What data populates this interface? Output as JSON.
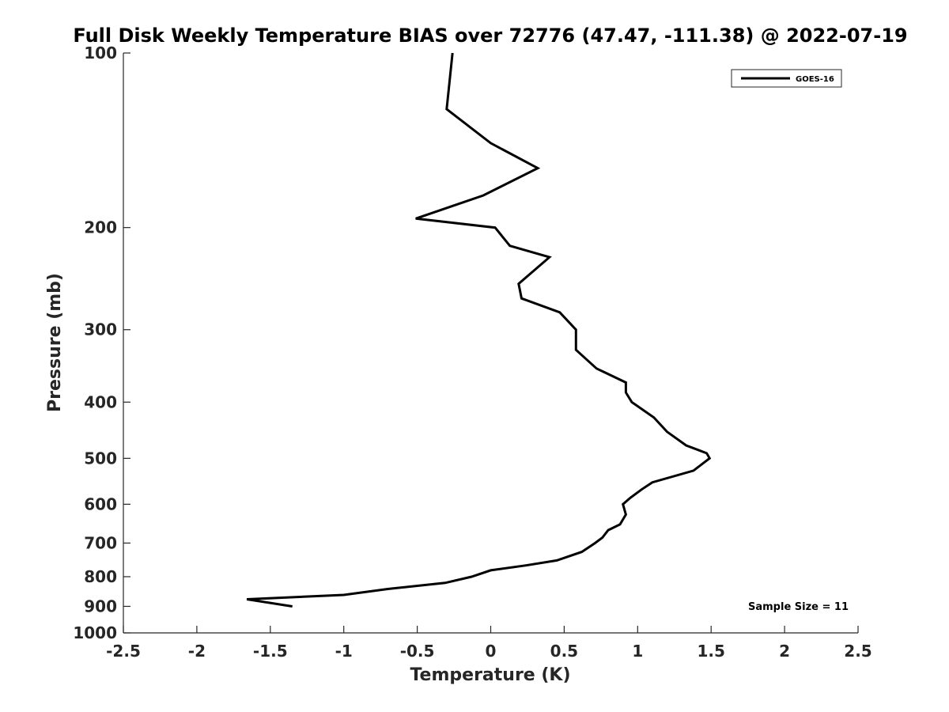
{
  "chart_data": {
    "type": "line",
    "title": "Full Disk Weekly Temperature BIAS over 72776 (47.47, -111.38) @ 2022-07-19",
    "xlabel": "Temperature (K)",
    "ylabel": "Pressure (mb)",
    "xlim": [
      -2.5,
      2.5
    ],
    "ylim": [
      100,
      1000
    ],
    "yscale": "log",
    "y_reversed": true,
    "x_ticks": [
      -2.5,
      -2,
      -1.5,
      -1,
      -0.5,
      0,
      0.5,
      1,
      1.5,
      2,
      2.5
    ],
    "x_tick_labels": [
      "-2.5",
      "-2",
      "-1.5",
      "-1",
      "-0.5",
      "0",
      "0.5",
      "1",
      "1.5",
      "2",
      "2.5"
    ],
    "y_ticks": [
      100,
      200,
      300,
      400,
      500,
      600,
      700,
      800,
      900,
      1000
    ],
    "y_tick_labels": [
      "100",
      "200",
      "300",
      "400",
      "500",
      "600",
      "700",
      "800",
      "900",
      "1000"
    ],
    "grid": false,
    "legend_position": "top-right",
    "series": [
      {
        "name": "GOES-16",
        "color": "#000000",
        "points": [
          {
            "x": -0.26,
            "y": 100
          },
          {
            "x": -0.3,
            "y": 125
          },
          {
            "x": 0.0,
            "y": 143
          },
          {
            "x": 0.32,
            "y": 158
          },
          {
            "x": -0.05,
            "y": 176
          },
          {
            "x": -0.51,
            "y": 193
          },
          {
            "x": 0.03,
            "y": 200
          },
          {
            "x": 0.13,
            "y": 215
          },
          {
            "x": 0.4,
            "y": 225
          },
          {
            "x": 0.19,
            "y": 250
          },
          {
            "x": 0.21,
            "y": 265
          },
          {
            "x": 0.47,
            "y": 280
          },
          {
            "x": 0.58,
            "y": 300
          },
          {
            "x": 0.58,
            "y": 325
          },
          {
            "x": 0.72,
            "y": 350
          },
          {
            "x": 0.92,
            "y": 370
          },
          {
            "x": 0.92,
            "y": 385
          },
          {
            "x": 0.96,
            "y": 400
          },
          {
            "x": 1.11,
            "y": 425
          },
          {
            "x": 1.2,
            "y": 450
          },
          {
            "x": 1.33,
            "y": 475
          },
          {
            "x": 1.47,
            "y": 490
          },
          {
            "x": 1.49,
            "y": 500
          },
          {
            "x": 1.38,
            "y": 525
          },
          {
            "x": 1.1,
            "y": 550
          },
          {
            "x": 1.03,
            "y": 565
          },
          {
            "x": 0.95,
            "y": 585
          },
          {
            "x": 0.9,
            "y": 600
          },
          {
            "x": 0.92,
            "y": 625
          },
          {
            "x": 0.88,
            "y": 650
          },
          {
            "x": 0.8,
            "y": 665
          },
          {
            "x": 0.76,
            "y": 685
          },
          {
            "x": 0.71,
            "y": 700
          },
          {
            "x": 0.62,
            "y": 725
          },
          {
            "x": 0.45,
            "y": 750
          },
          {
            "x": 0.24,
            "y": 765
          },
          {
            "x": 0.0,
            "y": 780
          },
          {
            "x": -0.13,
            "y": 800
          },
          {
            "x": -0.31,
            "y": 820
          },
          {
            "x": -0.7,
            "y": 840
          },
          {
            "x": -1.0,
            "y": 860
          },
          {
            "x": -1.66,
            "y": 875
          },
          {
            "x": -1.35,
            "y": 900
          }
        ]
      }
    ],
    "annotations": [
      {
        "text": "Sample Size = 11",
        "position": "bottom-right"
      }
    ]
  }
}
